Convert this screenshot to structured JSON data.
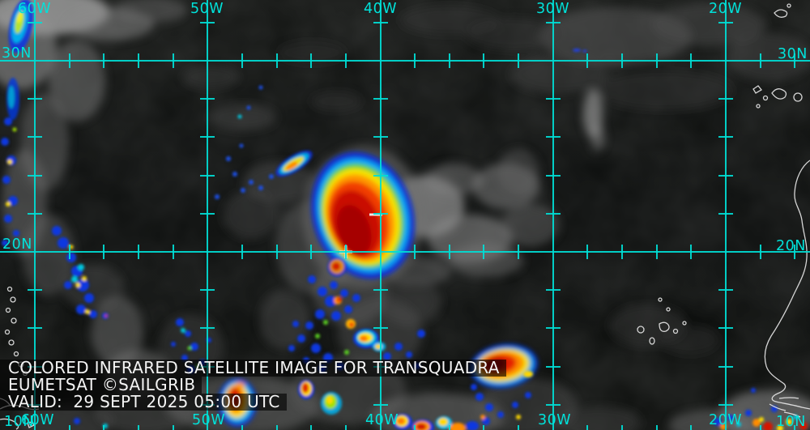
{
  "title_overlay": {
    "line1": "COLORED INFRARED SATELLITE IMAGE FOR TRANSQUADRA",
    "line2": "EUMETSAT ©SAILGRIB",
    "line3": "VALID:  29 SEPT 2025 05:00 UTC"
  },
  "grid_labels": {
    "top": [
      "60W",
      "50W",
      "40W",
      "30W",
      "20W"
    ],
    "bottom": [
      "60W",
      "50W",
      "40W",
      "30W",
      "20W"
    ],
    "left": [
      "30N",
      "20N",
      "10N"
    ],
    "right": [
      "30N",
      "20N",
      "10N"
    ]
  },
  "colors": {
    "grid": "#00ddd5",
    "label": "#00e2da",
    "caption_text": "#f4f4f4",
    "caption_band": "rgba(0,0,0,0.62)",
    "convection_core": "#c40c00",
    "convection_warm": "#ff9000",
    "convection_mid": "#ffe400",
    "convection_cold_edge": "#0a30d8",
    "coastline": "#e6e6e6"
  }
}
